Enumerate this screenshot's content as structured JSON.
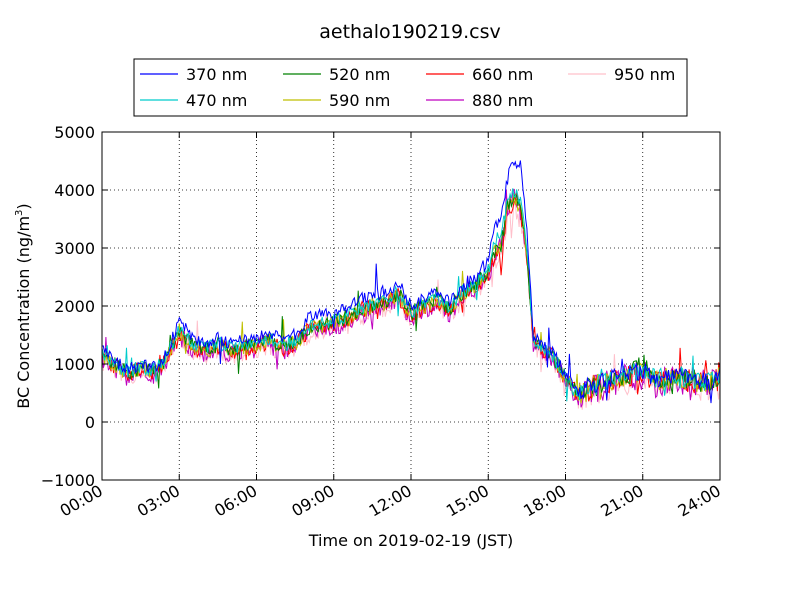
{
  "chart_data": {
    "type": "line",
    "title": "aethalo190219.csv",
    "xlabel": "Time on 2019-02-19 (JST)",
    "ylabel": "BC Concentration (ng/m³)",
    "ylabel_main": "BC Concentration (ng/m",
    "ylabel_sup": "3",
    "ylabel_tail": ")",
    "xlim": [
      0,
      24
    ],
    "ylim": [
      -1000,
      5000
    ],
    "x_ticks": [
      0,
      3,
      6,
      9,
      12,
      15,
      18,
      21,
      24
    ],
    "x_tick_labels": [
      "00:00",
      "03:00",
      "06:00",
      "09:00",
      "12:00",
      "15:00",
      "18:00",
      "21:00",
      "24:00"
    ],
    "y_ticks": [
      -1000,
      0,
      1000,
      2000,
      3000,
      4000,
      5000
    ],
    "y_tick_labels": [
      "−1000",
      "0",
      "1000",
      "2000",
      "3000",
      "4000",
      "5000"
    ],
    "grid": true,
    "legend_position": "top-outside",
    "x_unit": "hours",
    "series": [
      {
        "name": "370 nm",
        "color": "#0000ff",
        "wave": 370,
        "x": [
          0,
          0.5,
          1,
          1.5,
          2,
          2.5,
          3,
          3.5,
          4,
          4.5,
          5,
          5.5,
          6,
          6.5,
          7,
          7.5,
          8,
          8.5,
          9,
          9.5,
          10,
          10.5,
          11,
          11.5,
          12,
          12.5,
          13,
          13.5,
          14,
          14.5,
          15,
          15.25,
          15.5,
          15.75,
          16,
          16.25,
          16.5,
          16.75,
          17,
          17.5,
          18,
          18.5,
          19,
          19.5,
          20,
          20.5,
          21,
          21.5,
          22,
          22.5,
          23,
          23.5,
          24
        ],
        "values": [
          1250,
          1050,
          900,
          1000,
          950,
          1150,
          1750,
          1450,
          1350,
          1450,
          1350,
          1400,
          1450,
          1550,
          1400,
          1500,
          1800,
          1850,
          1900,
          1950,
          2100,
          2200,
          2250,
          2400,
          2000,
          2150,
          2250,
          2050,
          2350,
          2500,
          2750,
          3350,
          3500,
          4200,
          4500,
          4400,
          3300,
          1500,
          1350,
          1200,
          800,
          500,
          650,
          700,
          800,
          850,
          900,
          750,
          800,
          800,
          750,
          700,
          800
        ]
      },
      {
        "name": "470 nm",
        "color": "#00cccc",
        "wave": 470,
        "x": [
          0,
          0.5,
          1,
          1.5,
          2,
          2.5,
          3,
          3.5,
          4,
          4.5,
          5,
          5.5,
          6,
          6.5,
          7,
          7.5,
          8,
          8.5,
          9,
          9.5,
          10,
          10.5,
          11,
          11.5,
          12,
          12.5,
          13,
          13.5,
          14,
          14.5,
          15,
          15.25,
          15.5,
          15.75,
          16,
          16.25,
          16.5,
          16.75,
          17,
          17.5,
          18,
          18.5,
          19,
          19.5,
          20,
          20.5,
          21,
          21.5,
          22,
          22.5,
          23,
          23.5,
          24
        ],
        "values": [
          1200,
          1000,
          850,
          950,
          900,
          1100,
          1600,
          1350,
          1280,
          1350,
          1280,
          1320,
          1380,
          1450,
          1330,
          1400,
          1650,
          1700,
          1750,
          1800,
          1950,
          2050,
          2100,
          2250,
          1900,
          2050,
          2150,
          1980,
          2250,
          2400,
          2600,
          3100,
          3250,
          3800,
          3950,
          3800,
          3000,
          1400,
          1300,
          1150,
          780,
          480,
          620,
          680,
          780,
          820,
          870,
          730,
          780,
          780,
          730,
          680,
          780
        ]
      },
      {
        "name": "520 nm",
        "color": "#008000",
        "wave": 520,
        "x": [
          0,
          0.5,
          1,
          1.5,
          2,
          2.5,
          3,
          3.5,
          4,
          4.5,
          5,
          5.5,
          6,
          6.5,
          7,
          7.5,
          8,
          8.5,
          9,
          9.5,
          10,
          10.5,
          11,
          11.5,
          12,
          12.5,
          13,
          13.5,
          14,
          14.5,
          15,
          15.25,
          15.5,
          15.75,
          16,
          16.25,
          16.5,
          16.75,
          17,
          17.5,
          18,
          18.5,
          19,
          19.5,
          20,
          20.5,
          21,
          21.5,
          22,
          22.5,
          23,
          23.5,
          24
        ],
        "values": [
          1180,
          990,
          840,
          940,
          890,
          1090,
          1580,
          1330,
          1260,
          1330,
          1260,
          1300,
          1360,
          1430,
          1310,
          1380,
          1620,
          1680,
          1720,
          1780,
          1920,
          2020,
          2070,
          2220,
          1880,
          2020,
          2120,
          1960,
          2220,
          2380,
          2580,
          2900,
          3050,
          3750,
          3900,
          3750,
          2950,
          1380,
          1280,
          1130,
          770,
          470,
          610,
          670,
          770,
          810,
          1000,
          720,
          770,
          770,
          720,
          670,
          770
        ]
      },
      {
        "name": "590 nm",
        "color": "#bfbf00",
        "wave": 590,
        "x": [
          0,
          0.5,
          1,
          1.5,
          2,
          2.5,
          3,
          3.5,
          4,
          4.5,
          5,
          5.5,
          6,
          6.5,
          7,
          7.5,
          8,
          8.5,
          9,
          9.5,
          10,
          10.5,
          11,
          11.5,
          12,
          12.5,
          13,
          13.5,
          14,
          14.5,
          15,
          15.25,
          15.5,
          15.75,
          16,
          16.25,
          16.5,
          16.75,
          17,
          17.5,
          18,
          18.5,
          19,
          19.5,
          20,
          20.5,
          21,
          21.5,
          22,
          22.5,
          23,
          23.5,
          24
        ],
        "values": [
          1160,
          980,
          830,
          930,
          880,
          1080,
          1560,
          1310,
          1240,
          1310,
          1240,
          1280,
          1340,
          1410,
          1290,
          1360,
          1600,
          1660,
          1700,
          1760,
          1900,
          2000,
          2050,
          2200,
          1860,
          2000,
          2100,
          1940,
          2200,
          2360,
          2560,
          2950,
          3100,
          3700,
          3850,
          3700,
          2900,
          1400,
          1300,
          1150,
          760,
          460,
          600,
          660,
          760,
          800,
          850,
          710,
          760,
          760,
          710,
          660,
          760
        ]
      },
      {
        "name": "660 nm",
        "color": "#ff0000",
        "wave": 660,
        "x": [
          0,
          0.5,
          1,
          1.5,
          2,
          2.5,
          3,
          3.5,
          4,
          4.5,
          5,
          5.5,
          6,
          6.5,
          7,
          7.5,
          8,
          8.5,
          9,
          9.5,
          10,
          10.5,
          11,
          11.5,
          12,
          12.5,
          13,
          13.5,
          14,
          14.5,
          15,
          15.25,
          15.5,
          15.75,
          16,
          16.25,
          16.5,
          16.75,
          17,
          17.5,
          18,
          18.5,
          19,
          19.5,
          20,
          20.5,
          21,
          21.5,
          22,
          22.5,
          23,
          23.5,
          24
        ],
        "values": [
          1140,
          960,
          810,
          910,
          860,
          1060,
          1540,
          1290,
          1220,
          1290,
          1220,
          1260,
          1320,
          1390,
          1270,
          1340,
          1580,
          1640,
          1680,
          1740,
          1880,
          1980,
          2030,
          2180,
          1840,
          1980,
          2080,
          1920,
          2180,
          2340,
          2540,
          2800,
          3000,
          3650,
          3800,
          3650,
          2850,
          1380,
          1280,
          1130,
          750,
          450,
          590,
          650,
          750,
          790,
          840,
          700,
          750,
          750,
          700,
          650,
          750
        ]
      },
      {
        "name": "880 nm",
        "color": "#bf00bf",
        "wave": 880,
        "x": [
          0,
          0.5,
          1,
          1.5,
          2,
          2.5,
          3,
          3.5,
          4,
          4.5,
          5,
          5.5,
          6,
          6.5,
          7,
          7.5,
          8,
          8.5,
          9,
          9.5,
          10,
          10.5,
          11,
          11.5,
          12,
          12.5,
          13,
          13.5,
          14,
          14.5,
          15,
          15.25,
          15.5,
          15.75,
          16,
          16.25,
          16.5,
          16.75,
          17,
          17.5,
          18,
          18.5,
          19,
          19.5,
          20,
          20.5,
          21,
          21.5,
          22,
          22.5,
          23,
          23.5,
          24
        ],
        "values": [
          1100,
          920,
          780,
          880,
          830,
          1020,
          1500,
          1250,
          1180,
          1250,
          1180,
          1220,
          1280,
          1350,
          1230,
          1300,
          1540,
          1600,
          1640,
          1700,
          1840,
          1940,
          1990,
          2140,
          1800,
          1940,
          2040,
          1880,
          2140,
          2300,
          2500,
          2850,
          3050,
          3700,
          3850,
          3600,
          2800,
          1350,
          1250,
          1100,
          720,
          420,
          560,
          620,
          720,
          760,
          810,
          670,
          720,
          720,
          670,
          620,
          720
        ]
      },
      {
        "name": "950 nm",
        "color": "#ffc0cb",
        "wave": 950,
        "x": [
          0,
          0.5,
          1,
          1.5,
          2,
          2.5,
          3,
          3.5,
          4,
          4.5,
          5,
          5.5,
          6,
          6.5,
          7,
          7.5,
          8,
          8.5,
          9,
          9.5,
          10,
          10.5,
          11,
          11.5,
          12,
          12.5,
          13,
          13.5,
          14,
          14.5,
          15,
          15.25,
          15.5,
          15.75,
          16,
          16.25,
          16.5,
          16.75,
          17,
          17.5,
          18,
          18.5,
          19,
          19.5,
          20,
          20.5,
          21,
          21.5,
          22,
          22.5,
          23,
          23.5,
          24
        ],
        "values": [
          1080,
          900,
          760,
          860,
          810,
          1000,
          1480,
          1230,
          1160,
          1230,
          1160,
          1200,
          1260,
          1330,
          1210,
          1280,
          1520,
          1580,
          1620,
          1680,
          1820,
          1920,
          1970,
          2120,
          1780,
          1920,
          2020,
          1860,
          2120,
          2280,
          2480,
          2750,
          2950,
          3500,
          3650,
          3500,
          2750,
          1330,
          1230,
          1080,
          700,
          400,
          540,
          600,
          700,
          740,
          790,
          650,
          700,
          700,
          650,
          600,
          700
        ]
      }
    ]
  }
}
